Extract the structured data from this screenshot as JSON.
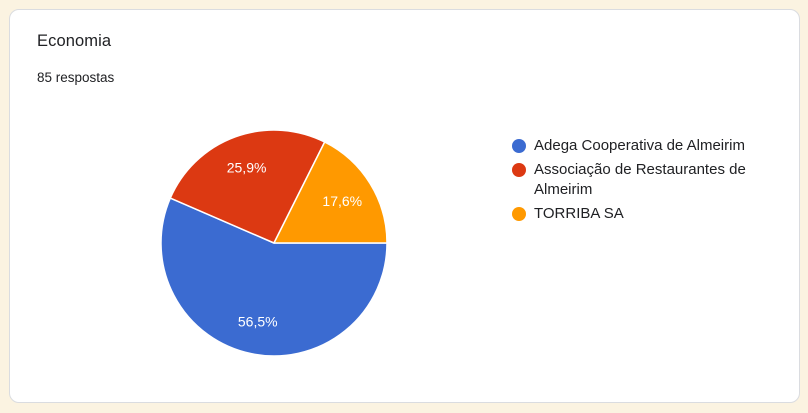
{
  "theme": {
    "page_background": "#fbf3e1",
    "card_background": "#ffffff",
    "card_border": "#dadce0",
    "text_primary": "#202124",
    "slice_label_color": "#ffffff"
  },
  "card": {
    "title": "Economia",
    "responses_label": "85 respostas"
  },
  "chart_data": {
    "type": "pie",
    "title": "Economia",
    "subtitle": "85 respostas",
    "categories": [
      "Adega Cooperativa de Almeirim",
      "Associação de Restaurantes de Almeirim",
      "TORRIBA SA"
    ],
    "values": [
      56.5,
      25.9,
      17.6
    ],
    "value_labels": [
      "56,5%",
      "25,9%",
      "17,6%"
    ],
    "colors": [
      "#3b6bd1",
      "#dc3912",
      "#ff9900"
    ],
    "start_angle_deg": 0,
    "direction": "clockwise",
    "slice_border_color": "#ffffff",
    "legend_position": "right",
    "grid": false
  }
}
